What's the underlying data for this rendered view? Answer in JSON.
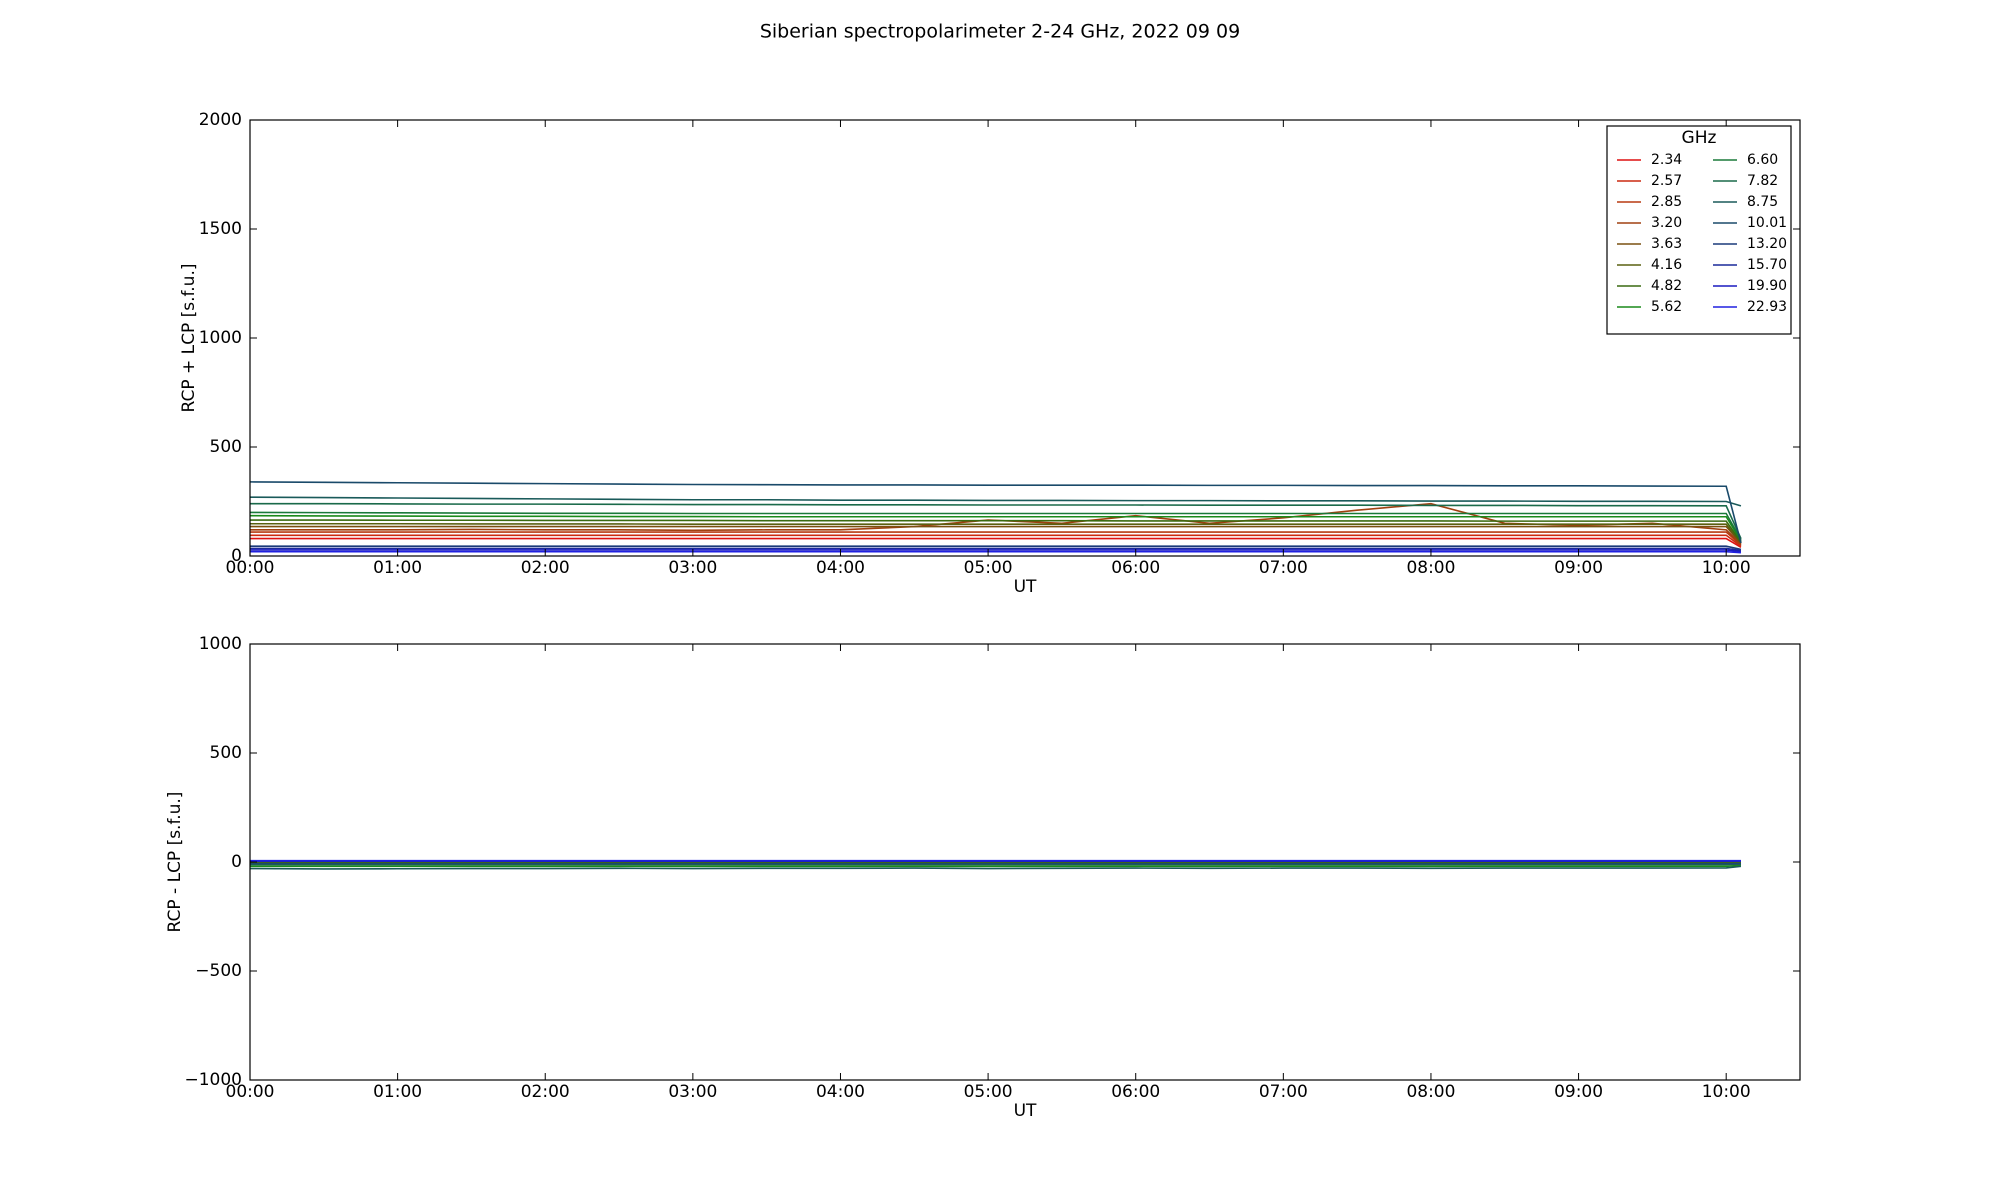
{
  "chart_data": [
    {
      "type": "line",
      "title": "Siberian spectropolarimeter 2-24 GHz, 2022 09 09",
      "x_label": "UT",
      "y_label": "RCP + LCP [s.f.u.]",
      "legend_title": "GHz",
      "legend": "upper right",
      "xlim": [
        0,
        10.5
      ],
      "ylim": [
        0,
        2000
      ],
      "xticks": [
        {
          "value": 0,
          "label": "00:00"
        },
        {
          "value": 1,
          "label": "01:00"
        },
        {
          "value": 2,
          "label": "02:00"
        },
        {
          "value": 3,
          "label": "03:00"
        },
        {
          "value": 4,
          "label": "04:00"
        },
        {
          "value": 5,
          "label": "05:00"
        },
        {
          "value": 6,
          "label": "06:00"
        },
        {
          "value": 7,
          "label": "07:00"
        },
        {
          "value": 8,
          "label": "08:00"
        },
        {
          "value": 9,
          "label": "09:00"
        },
        {
          "value": 10,
          "label": "10:00"
        }
      ],
      "yticks": [
        0,
        500,
        1000,
        1500,
        2000
      ],
      "x": [
        0,
        0.5,
        1,
        1.5,
        2,
        2.5,
        3,
        3.5,
        4,
        4.5,
        5,
        5.5,
        6,
        6.5,
        7,
        7.5,
        8,
        8.5,
        9,
        9.5,
        10,
        10.1
      ],
      "series": [
        {
          "name": "2.34",
          "color": "#dd1111",
          "values": [
            80,
            80,
            80,
            80,
            80,
            80,
            80,
            80,
            80,
            80,
            80,
            80,
            80,
            80,
            80,
            80,
            80,
            80,
            80,
            80,
            80,
            40
          ]
        },
        {
          "name": "2.57",
          "color": "#cc2a10",
          "values": [
            95,
            95,
            95,
            95,
            95,
            95,
            95,
            95,
            95,
            95,
            95,
            95,
            95,
            95,
            95,
            95,
            95,
            95,
            95,
            95,
            95,
            45
          ]
        },
        {
          "name": "2.85",
          "color": "#b83a10",
          "values": [
            110,
            110,
            110,
            110,
            110,
            110,
            110,
            110,
            110,
            110,
            110,
            110,
            110,
            110,
            110,
            110,
            110,
            110,
            110,
            110,
            110,
            50
          ]
        },
        {
          "name": "3.20",
          "color": "#a04010",
          "values": [
            120,
            120,
            120,
            122,
            120,
            120,
            118,
            120,
            120,
            135,
            165,
            150,
            185,
            150,
            175,
            210,
            240,
            150,
            140,
            150,
            120,
            55
          ]
        },
        {
          "name": "3.63",
          "color": "#7a5010",
          "values": [
            135,
            135,
            135,
            135,
            135,
            135,
            135,
            135,
            135,
            135,
            135,
            135,
            135,
            135,
            135,
            135,
            135,
            135,
            135,
            135,
            135,
            60
          ]
        },
        {
          "name": "4.16",
          "color": "#5a6010",
          "values": [
            148,
            148,
            148,
            147,
            147,
            147,
            146,
            146,
            146,
            146,
            146,
            146,
            146,
            146,
            146,
            146,
            146,
            146,
            146,
            146,
            146,
            60
          ]
        },
        {
          "name": "4.82",
          "color": "#3a6a10",
          "values": [
            165,
            165,
            164,
            164,
            163,
            163,
            163,
            162,
            162,
            162,
            162,
            162,
            161,
            161,
            161,
            161,
            161,
            160,
            160,
            160,
            160,
            65
          ]
        },
        {
          "name": "5.62",
          "color": "#1a8a1a",
          "values": [
            185,
            184,
            183,
            182,
            182,
            181,
            181,
            180,
            180,
            180,
            180,
            180,
            180,
            180,
            180,
            180,
            180,
            180,
            180,
            180,
            180,
            70
          ]
        },
        {
          "name": "6.60",
          "color": "#1a7a3a",
          "values": [
            200,
            199,
            198,
            197,
            196,
            196,
            195,
            195,
            195,
            195,
            195,
            195,
            195,
            195,
            195,
            195,
            195,
            195,
            195,
            195,
            195,
            75
          ]
        },
        {
          "name": "7.82",
          "color": "#1a6a4a",
          "values": [
            240,
            240,
            239,
            238,
            238,
            237,
            236,
            236,
            235,
            235,
            234,
            234,
            234,
            233,
            233,
            233,
            232,
            232,
            231,
            231,
            230,
            80
          ]
        },
        {
          "name": "8.75",
          "color": "#1a5a5a",
          "values": [
            270,
            268,
            266,
            264,
            262,
            260,
            258,
            258,
            256,
            256,
            255,
            255,
            254,
            254,
            253,
            253,
            252,
            252,
            251,
            251,
            250,
            230
          ]
        },
        {
          "name": "10.01",
          "color": "#1a4a6a",
          "values": [
            340,
            338,
            336,
            334,
            332,
            330,
            328,
            327,
            326,
            326,
            325,
            325,
            325,
            324,
            324,
            323,
            323,
            322,
            322,
            321,
            320,
            60
          ]
        },
        {
          "name": "13.20",
          "color": "#1a3a7a",
          "values": [
            45,
            45,
            45,
            45,
            45,
            45,
            45,
            45,
            45,
            45,
            45,
            45,
            45,
            45,
            45,
            45,
            45,
            45,
            45,
            45,
            45,
            30
          ]
        },
        {
          "name": "15.70",
          "color": "#1a2a9a",
          "values": [
            35,
            35,
            35,
            35,
            35,
            35,
            35,
            35,
            35,
            35,
            35,
            35,
            35,
            35,
            35,
            35,
            35,
            35,
            35,
            35,
            35,
            25
          ]
        },
        {
          "name": "19.90",
          "color": "#1a1abf",
          "values": [
            28,
            28,
            28,
            28,
            28,
            28,
            28,
            28,
            28,
            28,
            28,
            28,
            28,
            28,
            28,
            28,
            28,
            28,
            28,
            28,
            28,
            20
          ]
        },
        {
          "name": "22.93",
          "color": "#2020e0",
          "values": [
            20,
            20,
            20,
            20,
            20,
            20,
            20,
            20,
            20,
            20,
            20,
            20,
            20,
            20,
            20,
            20,
            20,
            20,
            20,
            20,
            20,
            15
          ]
        }
      ]
    },
    {
      "type": "line",
      "x_label": "UT",
      "y_label": "RCP - LCP [s.f.u.]",
      "xlim": [
        0,
        10.5
      ],
      "ylim": [
        -1000,
        1000
      ],
      "xticks": [
        {
          "value": 0,
          "label": "00:00"
        },
        {
          "value": 1,
          "label": "01:00"
        },
        {
          "value": 2,
          "label": "02:00"
        },
        {
          "value": 3,
          "label": "03:00"
        },
        {
          "value": 4,
          "label": "04:00"
        },
        {
          "value": 5,
          "label": "05:00"
        },
        {
          "value": 6,
          "label": "06:00"
        },
        {
          "value": 7,
          "label": "07:00"
        },
        {
          "value": 8,
          "label": "08:00"
        },
        {
          "value": 9,
          "label": "09:00"
        },
        {
          "value": 10,
          "label": "10:00"
        }
      ],
      "yticks": [
        {
          "value": -1000,
          "label": "−1000"
        },
        {
          "value": -500,
          "label": "−500"
        },
        0,
        500,
        1000
      ],
      "x": [
        0,
        0.5,
        1,
        1.5,
        2,
        2.5,
        3,
        3.5,
        4,
        4.5,
        5,
        5.5,
        6,
        6.5,
        7,
        7.5,
        8,
        8.5,
        9,
        9.5,
        10,
        10.1
      ],
      "series": [
        {
          "color": "#dd1111",
          "values": [
            2,
            2,
            2,
            2,
            2,
            2,
            2,
            2,
            2,
            2,
            2,
            2,
            2,
            2,
            2,
            2,
            2,
            2,
            2,
            2,
            2,
            2
          ]
        },
        {
          "color": "#cc2a10",
          "values": [
            1,
            1,
            1,
            1,
            1,
            1,
            1,
            1,
            1,
            1,
            1,
            1,
            1,
            1,
            1,
            1,
            1,
            1,
            1,
            1,
            1,
            1
          ]
        },
        {
          "color": "#b83a10",
          "values": [
            0,
            0,
            0,
            0,
            0,
            0,
            0,
            0,
            0,
            0,
            0,
            0,
            0,
            0,
            0,
            0,
            0,
            0,
            0,
            0,
            0,
            0
          ]
        },
        {
          "color": "#a04010",
          "values": [
            -2,
            -2,
            -2,
            -2,
            -2,
            -2,
            -2,
            -2,
            -2,
            -2,
            -2,
            -2,
            -2,
            -2,
            -2,
            -2,
            -2,
            -2,
            -2,
            -2,
            -2,
            -2
          ]
        },
        {
          "color": "#7a5010",
          "values": [
            -3,
            -3,
            -3,
            -3,
            -3,
            -3,
            -3,
            -3,
            -3,
            -3,
            -3,
            -3,
            -3,
            -3,
            -3,
            -3,
            -3,
            -3,
            -3,
            -3,
            -3,
            -3
          ]
        },
        {
          "color": "#5a6010",
          "values": [
            -4,
            -4,
            -4,
            -4,
            -4,
            -4,
            -4,
            -4,
            -4,
            -4,
            -4,
            -4,
            -4,
            -4,
            -4,
            -4,
            -4,
            -4,
            -4,
            -4,
            -4,
            -4
          ]
        },
        {
          "color": "#3a6a10",
          "values": [
            -5,
            -5,
            -5,
            -5,
            -5,
            -5,
            -5,
            -5,
            -5,
            -5,
            -5,
            -5,
            -5,
            -5,
            -5,
            -5,
            -5,
            -5,
            -5,
            -5,
            -5,
            -5
          ]
        },
        {
          "color": "#1a8a1a",
          "values": [
            -20,
            -20,
            -20,
            -20,
            -20,
            -20,
            -20,
            -20,
            -20,
            -20,
            -20,
            -20,
            -20,
            -20,
            -20,
            -20,
            -20,
            -20,
            -20,
            -20,
            -20,
            -15
          ]
        },
        {
          "color": "#1a7a3a",
          "values": [
            -10,
            -10,
            -10,
            -10,
            -10,
            -10,
            -10,
            -10,
            -10,
            -10,
            -10,
            -10,
            -10,
            -10,
            -10,
            -10,
            -10,
            -10,
            -10,
            -10,
            -10,
            -10
          ]
        },
        {
          "color": "#1a6a4a",
          "values": [
            -12,
            -12,
            -12,
            -12,
            -12,
            -12,
            -12,
            -12,
            -12,
            -12,
            -12,
            -12,
            -12,
            -12,
            -12,
            -12,
            -12,
            -12,
            -12,
            -12,
            -12,
            -10
          ]
        },
        {
          "color": "#1a5a5a",
          "values": [
            -30,
            -32,
            -31,
            -30,
            -30,
            -29,
            -30,
            -29,
            -29,
            -28,
            -30,
            -29,
            -28,
            -29,
            -28,
            -28,
            -29,
            -28,
            -28,
            -28,
            -27,
            -20
          ]
        },
        {
          "color": "#1a4a6a",
          "values": [
            -8,
            -8,
            -8,
            -8,
            -8,
            -8,
            -8,
            -8,
            -8,
            -8,
            -8,
            -8,
            -8,
            -8,
            -8,
            -8,
            -8,
            -8,
            -8,
            -8,
            -8,
            -8
          ]
        },
        {
          "color": "#1a3a7a",
          "values": [
            3,
            3,
            3,
            3,
            3,
            3,
            3,
            3,
            3,
            3,
            3,
            3,
            3,
            3,
            3,
            3,
            3,
            3,
            3,
            3,
            3,
            3
          ]
        },
        {
          "color": "#1a2a9a",
          "values": [
            4,
            4,
            4,
            4,
            4,
            4,
            4,
            4,
            4,
            4,
            4,
            4,
            4,
            4,
            4,
            4,
            4,
            4,
            4,
            4,
            4,
            4
          ]
        },
        {
          "color": "#1a1abf",
          "values": [
            5,
            5,
            5,
            5,
            5,
            5,
            5,
            5,
            5,
            5,
            5,
            5,
            5,
            5,
            5,
            5,
            5,
            5,
            5,
            5,
            5,
            5
          ]
        },
        {
          "color": "#2020e0",
          "values": [
            6,
            6,
            6,
            6,
            6,
            6,
            6,
            6,
            6,
            6,
            6,
            6,
            6,
            6,
            6,
            6,
            6,
            6,
            6,
            6,
            6,
            6
          ]
        }
      ]
    }
  ]
}
